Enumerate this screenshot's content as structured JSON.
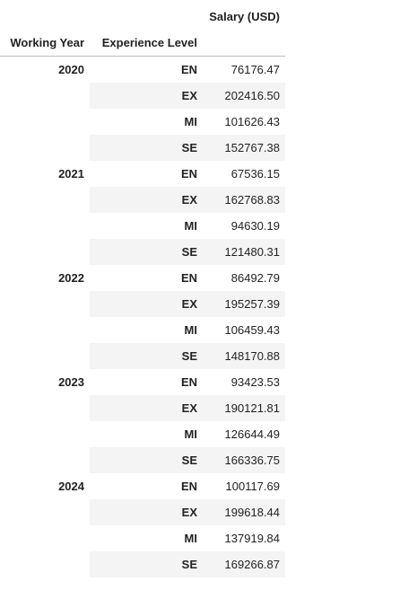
{
  "table": {
    "value_header": "Salary (USD)",
    "index_headers": [
      "Working Year",
      "Experience Level"
    ],
    "groups": [
      {
        "year": "2020",
        "rows": [
          {
            "level": "EN",
            "salary": "76176.47"
          },
          {
            "level": "EX",
            "salary": "202416.50"
          },
          {
            "level": "MI",
            "salary": "101626.43"
          },
          {
            "level": "SE",
            "salary": "152767.38"
          }
        ]
      },
      {
        "year": "2021",
        "rows": [
          {
            "level": "EN",
            "salary": "67536.15"
          },
          {
            "level": "EX",
            "salary": "162768.83"
          },
          {
            "level": "MI",
            "salary": "94630.19"
          },
          {
            "level": "SE",
            "salary": "121480.31"
          }
        ]
      },
      {
        "year": "2022",
        "rows": [
          {
            "level": "EN",
            "salary": "86492.79"
          },
          {
            "level": "EX",
            "salary": "195257.39"
          },
          {
            "level": "MI",
            "salary": "106459.43"
          },
          {
            "level": "SE",
            "salary": "148170.88"
          }
        ]
      },
      {
        "year": "2023",
        "rows": [
          {
            "level": "EN",
            "salary": "93423.53"
          },
          {
            "level": "EX",
            "salary": "190121.81"
          },
          {
            "level": "MI",
            "salary": "126644.49"
          },
          {
            "level": "SE",
            "salary": "166336.75"
          }
        ]
      },
      {
        "year": "2024",
        "rows": [
          {
            "level": "EN",
            "salary": "100117.69"
          },
          {
            "level": "EX",
            "salary": "199618.44"
          },
          {
            "level": "MI",
            "salary": "137919.84"
          },
          {
            "level": "SE",
            "salary": "169266.87"
          }
        ]
      }
    ]
  },
  "colors": {
    "stripe": "#f4f4f4",
    "header_rule": "#bdbdbd",
    "text": "#222222"
  }
}
